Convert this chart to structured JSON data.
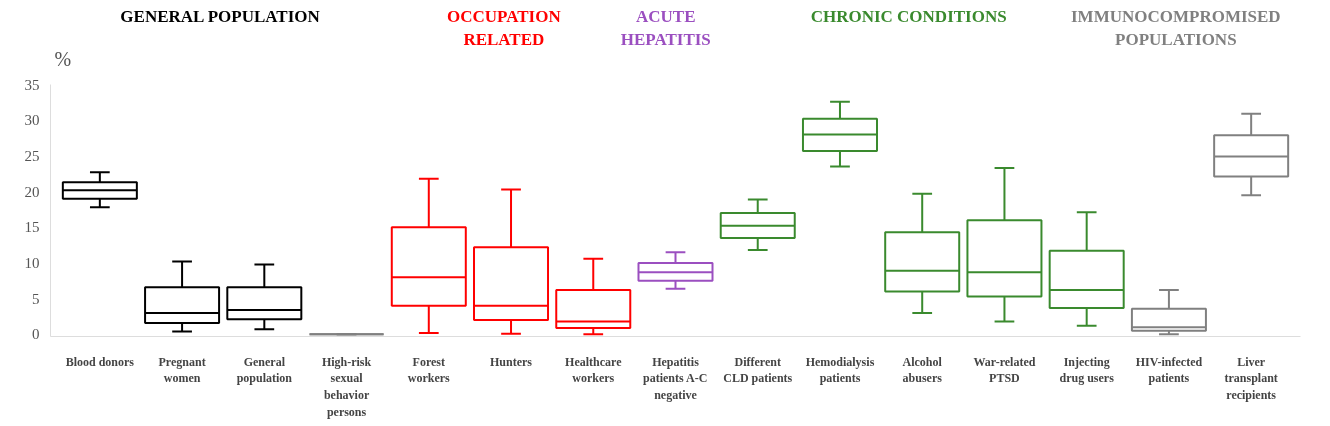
{
  "chart_data": {
    "type": "box",
    "ylabel": "%",
    "ylim": [
      -0.3,
      35
    ],
    "yticks": [
      0,
      5,
      10,
      15,
      20,
      25,
      30,
      35
    ],
    "grid": false,
    "categories": [
      "Blood donors",
      "Pregnant women",
      "General population",
      "High-risk sexual behavior persons",
      "Forest workers",
      "Hunters",
      "Healthcare workers",
      "Hepatitis patients A-C negative",
      "Different CLD patients",
      "Hemodialysis patients",
      "Alcohol abusers",
      "War-related PTSD",
      "Injecting drug users",
      "HIV-infected patients",
      "Liver transplant recipients"
    ],
    "colors": [
      "#000000",
      "#000000",
      "#000000",
      "#808080",
      "#ff0000",
      "#ff0000",
      "#ff0000",
      "#9b4fc0",
      "#3a8a2e",
      "#3a8a2e",
      "#3a8a2e",
      "#3a8a2e",
      "#3a8a2e",
      "#808080",
      "#808080"
    ],
    "boxes": [
      {
        "low": 17.8,
        "q1": 19,
        "median": 20.2,
        "q3": 21.3,
        "high": 22.7
      },
      {
        "low": 0.4,
        "q1": 1.6,
        "median": 3,
        "q3": 6.6,
        "high": 10.2
      },
      {
        "low": 0.7,
        "q1": 2.1,
        "median": 3.4,
        "q3": 6.6,
        "high": 9.8
      },
      {
        "low": 0,
        "q1": 0,
        "median": 0,
        "q3": 0,
        "high": 0
      },
      {
        "low": 0.2,
        "q1": 4,
        "median": 8,
        "q3": 15,
        "high": 21.8
      },
      {
        "low": 0.1,
        "q1": 2,
        "median": 4,
        "q3": 12.2,
        "high": 20.3
      },
      {
        "low": 0,
        "q1": 0.9,
        "median": 1.8,
        "q3": 6.2,
        "high": 10.6
      },
      {
        "low": 6.4,
        "q1": 7.5,
        "median": 8.7,
        "q3": 10,
        "high": 11.5
      },
      {
        "low": 11.8,
        "q1": 13.5,
        "median": 15.2,
        "q3": 17,
        "high": 18.9
      },
      {
        "low": 23.5,
        "q1": 25.7,
        "median": 28,
        "q3": 30.2,
        "high": 32.6
      },
      {
        "low": 3,
        "q1": 6,
        "median": 8.9,
        "q3": 14.3,
        "high": 19.7
      },
      {
        "low": 1.8,
        "q1": 5.3,
        "median": 8.7,
        "q3": 16,
        "high": 23.3
      },
      {
        "low": 1.2,
        "q1": 3.7,
        "median": 6.2,
        "q3": 11.7,
        "high": 17.1
      },
      {
        "low": 0,
        "q1": 0.5,
        "median": 1,
        "q3": 3.6,
        "high": 6.2
      },
      {
        "low": 19.5,
        "q1": 22.1,
        "median": 24.9,
        "q3": 27.9,
        "high": 30.9
      }
    ],
    "annotations": [
      "GENERAL POPULATION",
      "OCCUPATION RELATED",
      "ACUTE HEPATITIS",
      "CHRONIC CONDITIONS",
      "IMMUNOCOMPROMISED POPULATIONS"
    ]
  }
}
